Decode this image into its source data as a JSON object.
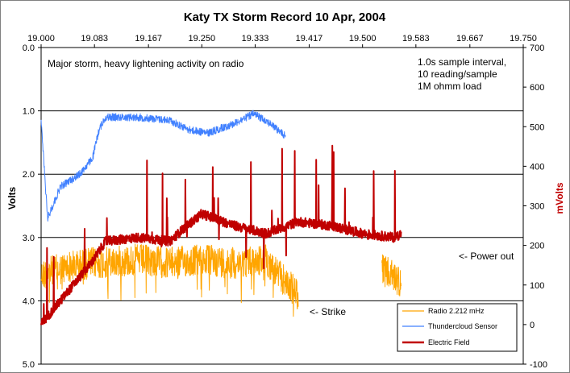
{
  "chart_data": {
    "type": "line",
    "title": "Katy TX Storm Record   10 Apr, 2004",
    "ylabel_left": "Volts",
    "ylabel_right": "mVolts",
    "x_ticks": [
      "19.000",
      "19.083",
      "19.167",
      "19.250",
      "19.333",
      "19.417",
      "19.500",
      "19.583",
      "19.667",
      "19.750"
    ],
    "xlim": [
      19.0,
      19.75
    ],
    "y_left_ticks": [
      "0.0",
      "1.0",
      "2.0",
      "3.0",
      "4.0",
      "5.0"
    ],
    "y_left_range": [
      0,
      5
    ],
    "y_left_reversed": true,
    "y_right_ticks": [
      "700",
      "600",
      "500",
      "400",
      "300",
      "200",
      "100",
      "0",
      "-100"
    ],
    "y_right_range": [
      -100,
      700
    ],
    "grid": "horizontal",
    "legend_position": "bottom-right",
    "annotations": {
      "top_left": "Major storm, heavy lightening activity on radio",
      "top_right": [
        "1.0s sample interval,",
        "10 reading/sample",
        "1M ohmm load"
      ],
      "power_out": "<- Power out",
      "strike": "<- Strike"
    },
    "series": [
      {
        "name": "Radio  2.212 mHz",
        "axis": "left",
        "color": "#ffa500",
        "x": [
          19.0,
          19.01,
          19.03,
          19.05,
          19.08,
          19.1,
          19.15,
          19.2,
          19.25,
          19.3,
          19.35,
          19.37,
          19.4,
          19.53,
          19.56
        ],
        "y": [
          3.6,
          3.55,
          3.5,
          3.45,
          3.4,
          3.4,
          3.35,
          3.4,
          3.35,
          3.4,
          3.35,
          3.6,
          3.9,
          3.5,
          3.7
        ],
        "noise": 0.25,
        "segments": [
          [
            19.0,
            19.4
          ],
          [
            19.53,
            19.56
          ]
        ]
      },
      {
        "name": "Thundercloud Sensor",
        "axis": "left",
        "color": "#4080ff",
        "x": [
          19.0,
          19.01,
          19.03,
          19.06,
          19.08,
          19.09,
          19.1,
          19.15,
          19.2,
          19.23,
          19.26,
          19.3,
          19.33,
          19.35,
          19.38
        ],
        "y": [
          1.15,
          2.7,
          2.2,
          2.0,
          1.75,
          1.3,
          1.1,
          1.1,
          1.15,
          1.3,
          1.35,
          1.2,
          1.05,
          1.15,
          1.4
        ],
        "noise": 0.06,
        "segments": [
          [
            19.0,
            19.38
          ]
        ]
      },
      {
        "name": "Electric Field",
        "axis": "right",
        "color": "#c00000",
        "x": [
          19.0,
          19.02,
          19.05,
          19.08,
          19.1,
          19.15,
          19.2,
          19.22,
          19.25,
          19.3,
          19.35,
          19.4,
          19.45,
          19.5,
          19.55,
          19.56
        ],
        "y": [
          0,
          40,
          100,
          160,
          210,
          220,
          210,
          240,
          280,
          250,
          230,
          260,
          250,
          230,
          220,
          230
        ],
        "noise": 12,
        "segments": [
          [
            19.0,
            19.56
          ]
        ]
      }
    ]
  }
}
